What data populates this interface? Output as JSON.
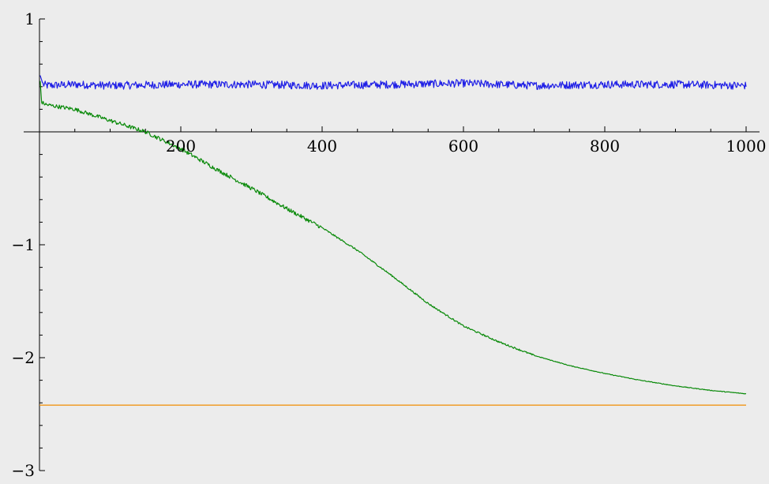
{
  "chart_data": {
    "type": "line",
    "title": "",
    "xlabel": "",
    "ylabel": "",
    "xlim": [
      0,
      1000
    ],
    "ylim": [
      -3,
      1
    ],
    "x_ticks": [
      {
        "value": 200,
        "label": "200"
      },
      {
        "value": 400,
        "label": "400"
      },
      {
        "value": 600,
        "label": "600"
      },
      {
        "value": 800,
        "label": "800"
      },
      {
        "value": 1000,
        "label": "1000"
      }
    ],
    "y_ticks": [
      {
        "value": 1,
        "label": "1"
      },
      {
        "value": -1,
        "label": "−1"
      },
      {
        "value": -2,
        "label": "−2"
      },
      {
        "value": -3,
        "label": "−3"
      }
    ],
    "grid": false,
    "legend": "none",
    "series": [
      {
        "color": "#1f1fe6",
        "style": "noisy-constant",
        "x": [
          1,
          5,
          10,
          50,
          100,
          200,
          300,
          400,
          500,
          600,
          700,
          800,
          900,
          1000
        ],
        "y": [
          0.5,
          0.42,
          0.41,
          0.42,
          0.41,
          0.42,
          0.42,
          0.41,
          0.42,
          0.43,
          0.41,
          0.42,
          0.42,
          0.41
        ]
      },
      {
        "color": "#0a8a0a",
        "style": "noisy-decay",
        "x": [
          1,
          3,
          10,
          30,
          50,
          80,
          100,
          150,
          200,
          250,
          300,
          350,
          400,
          450,
          500,
          550,
          600,
          650,
          700,
          750,
          800,
          850,
          900,
          950,
          1000
        ],
        "y": [
          0.45,
          0.26,
          0.24,
          0.22,
          0.2,
          0.14,
          0.1,
          0.0,
          -0.15,
          -0.33,
          -0.5,
          -0.68,
          -0.85,
          -1.05,
          -1.28,
          -1.52,
          -1.72,
          -1.86,
          -1.98,
          -2.07,
          -2.14,
          -2.2,
          -2.25,
          -2.29,
          -2.32
        ]
      },
      {
        "color": "#f08c00",
        "style": "flat",
        "x": [
          0,
          1000
        ],
        "y": [
          -2.42,
          -2.42
        ]
      }
    ]
  }
}
